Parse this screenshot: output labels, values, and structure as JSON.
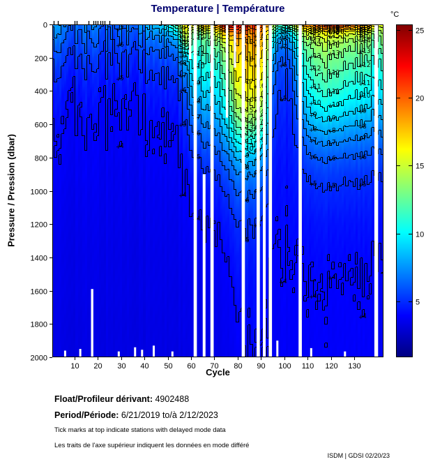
{
  "title": "Temperature | Température",
  "colors": {
    "title": "#00006e",
    "text": "#000000",
    "plot_border": "#000000",
    "background": "#ffffff"
  },
  "axes": {
    "x_label": "Cycle",
    "y_label": "Pressure / Pression (dbar)",
    "x_ticks": [
      10,
      20,
      30,
      40,
      50,
      60,
      70,
      80,
      90,
      100,
      110,
      120,
      130
    ],
    "y_ticks": [
      0,
      200,
      400,
      600,
      800,
      1000,
      1200,
      1400,
      1600,
      1800,
      2000
    ],
    "x_range": [
      0.5,
      142.5
    ],
    "y_range": [
      0,
      2000
    ]
  },
  "colorbar": {
    "label": "°C",
    "ticks": [
      25,
      20,
      15,
      10,
      5
    ],
    "vmin": 0.9,
    "vmax": 25.4
  },
  "chart_data": {
    "type": "heatmap",
    "x_name": "cycle",
    "y_name": "pressure_dbar",
    "value_name": "temperature_C",
    "pressures": [
      0,
      50,
      100,
      150,
      200,
      300,
      400,
      500,
      600,
      700,
      800,
      900,
      1000,
      1200,
      1400,
      1600,
      1800,
      2000
    ],
    "cycles": [
      1,
      6,
      12,
      18,
      24,
      30,
      36,
      42,
      48,
      52,
      55,
      58,
      61,
      64,
      67,
      71,
      75,
      79,
      83,
      87,
      91,
      95,
      99,
      103,
      107,
      111,
      116,
      121,
      126,
      131,
      136,
      139,
      142
    ],
    "temps_by_cycle": [
      [
        7.5,
        6.8,
        6.2,
        5.8,
        5.4,
        4.8,
        4.4,
        4.2,
        4.0,
        3.9,
        3.8,
        3.7,
        3.6,
        3.5,
        3.4,
        3.4,
        3.3,
        3.3
      ],
      [
        7.0,
        6.4,
        6.0,
        5.6,
        5.2,
        4.7,
        4.3,
        4.1,
        4.0,
        3.9,
        3.8,
        3.7,
        3.6,
        3.5,
        3.4,
        3.4,
        3.3,
        3.3
      ],
      [
        6.5,
        6.0,
        5.7,
        5.4,
        5.1,
        4.6,
        4.3,
        4.1,
        3.9,
        3.8,
        3.7,
        3.7,
        3.6,
        3.5,
        3.4,
        3.4,
        3.3,
        3.3
      ],
      [
        6.8,
        6.2,
        5.8,
        5.5,
        5.1,
        4.6,
        4.3,
        4.1,
        3.9,
        3.8,
        3.7,
        3.7,
        3.6,
        3.5,
        3.4,
        3.4,
        3.3,
        3.3
      ],
      [
        6.2,
        5.9,
        5.6,
        5.3,
        5.0,
        4.6,
        4.2,
        4.0,
        3.9,
        3.8,
        3.7,
        3.6,
        3.6,
        3.5,
        3.4,
        3.4,
        3.3,
        3.3
      ],
      [
        6.6,
        6.1,
        5.8,
        5.4,
        5.1,
        4.7,
        4.3,
        4.1,
        3.9,
        3.8,
        3.7,
        3.6,
        3.6,
        3.5,
        3.4,
        3.4,
        3.3,
        3.3
      ],
      [
        7.2,
        6.5,
        6.0,
        5.6,
        5.2,
        4.7,
        4.4,
        4.1,
        4.0,
        3.8,
        3.7,
        3.7,
        3.6,
        3.5,
        3.4,
        3.4,
        3.3,
        3.3
      ],
      [
        8.0,
        7.0,
        6.3,
        5.8,
        5.4,
        4.8,
        4.4,
        4.2,
        4.0,
        3.9,
        3.8,
        3.7,
        3.6,
        3.5,
        3.4,
        3.4,
        3.3,
        3.3
      ],
      [
        9.0,
        7.6,
        6.7,
        6.1,
        5.6,
        5.0,
        4.5,
        4.2,
        4.0,
        3.9,
        3.8,
        3.7,
        3.6,
        3.5,
        3.4,
        3.4,
        3.3,
        3.3
      ],
      [
        11.5,
        9.0,
        7.5,
        6.6,
        6.0,
        5.2,
        4.7,
        4.4,
        4.1,
        4.0,
        3.9,
        3.8,
        3.7,
        3.5,
        3.5,
        3.4,
        3.4,
        3.3
      ],
      [
        14.0,
        11.0,
        9.0,
        7.8,
        6.8,
        5.7,
        5.0,
        4.6,
        4.3,
        4.1,
        3.9,
        3.8,
        3.7,
        3.6,
        3.5,
        3.4,
        3.4,
        3.3
      ],
      [
        16.5,
        15.5,
        14.0,
        11.0,
        8.8,
        7.0,
        6.0,
        5.4,
        4.9,
        4.5,
        4.2,
        4.0,
        3.9,
        3.7,
        3.5,
        3.4,
        3.4,
        3.3
      ],
      [
        16.0,
        12.5,
        11.3,
        10.8,
        10.2,
        9.2,
        8.2,
        7.2,
        6.2,
        5.4,
        4.8,
        4.4,
        4.1,
        3.8,
        3.6,
        3.5,
        3.4,
        3.4
      ],
      [
        16.5,
        13.0,
        11.6,
        11.2,
        10.6,
        9.6,
        8.6,
        7.6,
        6.6,
        5.8,
        5.1,
        4.6,
        4.3,
        3.9,
        3.7,
        3.5,
        3.4,
        3.4
      ],
      [
        17.5,
        13.5,
        12.0,
        11.6,
        11.0,
        10.0,
        9.0,
        8.0,
        7.0,
        6.1,
        5.4,
        4.8,
        4.4,
        4.0,
        3.7,
        3.6,
        3.5,
        3.4
      ],
      [
        19.5,
        15.5,
        13.5,
        12.4,
        11.6,
        10.6,
        9.6,
        8.6,
        7.6,
        6.6,
        5.7,
        5.1,
        4.6,
        4.1,
        3.8,
        3.6,
        3.5,
        3.4
      ],
      [
        22.5,
        17.5,
        15.0,
        13.8,
        13.0,
        12.0,
        11.0,
        10.0,
        8.8,
        7.6,
        6.5,
        5.6,
        5.0,
        4.3,
        3.9,
        3.7,
        3.6,
        3.5
      ],
      [
        22.5,
        19.0,
        17.5,
        16.8,
        16.2,
        15.4,
        14.5,
        13.2,
        11.5,
        9.6,
        7.8,
        6.6,
        5.8,
        4.8,
        4.3,
        4.0,
        3.8,
        3.6
      ],
      [
        22.0,
        19.5,
        18.5,
        18.0,
        17.6,
        17.0,
        16.2,
        15.2,
        13.5,
        11.0,
        8.8,
        7.2,
        6.3,
        5.1,
        4.6,
        4.3,
        4.1,
        4.0
      ],
      [
        21.0,
        19.2,
        18.4,
        17.9,
        17.5,
        16.8,
        16.0,
        14.8,
        12.8,
        10.4,
        8.4,
        7.0,
        6.1,
        5.0,
        4.5,
        4.2,
        4.1,
        4.0
      ],
      [
        20.5,
        18.8,
        18.0,
        17.5,
        17.0,
        16.2,
        15.2,
        13.8,
        11.8,
        9.6,
        7.8,
        6.6,
        5.9,
        4.9,
        4.5,
        4.2,
        4.1,
        4.0
      ],
      [
        15.5,
        12.5,
        10.5,
        9.3,
        8.4,
        7.2,
        6.4,
        5.9,
        5.5,
        5.1,
        4.8,
        4.6,
        4.4,
        4.2,
        4.0,
        3.9,
        3.8,
        3.8
      ],
      [
        11.5,
        8.5,
        6.8,
        6.2,
        5.7,
        5.2,
        4.9,
        4.7,
        4.5,
        4.4,
        4.3,
        4.2,
        4.2,
        4.1,
        4.0,
        3.9,
        3.8,
        3.8
      ],
      [
        13.5,
        9.5,
        7.8,
        6.9,
        6.2,
        5.5,
        5.1,
        4.8,
        4.6,
        4.5,
        4.4,
        4.3,
        4.2,
        4.1,
        4.0,
        3.9,
        3.8,
        3.8
      ],
      [
        18.5,
        14.0,
        12.0,
        11.0,
        10.2,
        9.2,
        8.2,
        7.2,
        6.3,
        5.6,
        5.1,
        4.8,
        4.6,
        4.2,
        4.0,
        3.9,
        3.9,
        3.8
      ],
      [
        19.5,
        15.5,
        13.8,
        13.0,
        12.4,
        11.4,
        10.4,
        9.3,
        8.2,
        6.9,
        5.9,
        5.2,
        4.8,
        4.3,
        4.1,
        4.0,
        3.9,
        3.8
      ],
      [
        20.5,
        16.0,
        14.5,
        13.8,
        13.2,
        12.2,
        11.2,
        10.0,
        8.6,
        7.2,
        6.1,
        5.4,
        4.9,
        4.4,
        4.1,
        4.0,
        3.9,
        3.9
      ],
      [
        22.5,
        16.5,
        14.8,
        14.0,
        13.4,
        12.4,
        11.4,
        10.2,
        8.8,
        7.4,
        6.2,
        5.5,
        5.0,
        4.4,
        4.2,
        4.0,
        3.9,
        3.9
      ],
      [
        21.0,
        16.0,
        14.2,
        13.4,
        12.8,
        11.8,
        10.8,
        9.7,
        8.4,
        7.1,
        6.0,
        5.3,
        4.9,
        4.4,
        4.1,
        4.0,
        3.9,
        3.9
      ],
      [
        19.5,
        15.0,
        13.6,
        12.9,
        12.3,
        11.3,
        10.3,
        9.2,
        8.0,
        6.8,
        5.9,
        5.2,
        4.8,
        4.3,
        4.1,
        3.9,
        3.9,
        3.8
      ],
      [
        18.5,
        14.5,
        13.1,
        12.4,
        11.8,
        10.9,
        9.9,
        8.8,
        7.7,
        6.6,
        5.7,
        5.1,
        4.7,
        4.3,
        4.0,
        3.9,
        3.8,
        3.8
      ],
      [
        17.5,
        14.0,
        12.8,
        12.0,
        11.4,
        10.5,
        9.5,
        8.5,
        7.5,
        6.5,
        5.7,
        5.1,
        4.7,
        4.3,
        4.0,
        3.9,
        3.8,
        3.8
      ],
      [
        16.0,
        14.5,
        13.5,
        12.8,
        12.0,
        11.0,
        10.0,
        9.0,
        7.9,
        6.8,
        5.9,
        5.2,
        4.8,
        4.3,
        4.1,
        3.9,
        3.8,
        3.8
      ]
    ],
    "contour_levels_min": 2,
    "contour_levels_max": 24,
    "labeled_levels": [
      4,
      5,
      6,
      7,
      8,
      9,
      10,
      11,
      12,
      13,
      14,
      15,
      16,
      17,
      18,
      19
    ],
    "label_cycles": [
      30,
      57,
      63,
      84,
      89,
      100,
      113,
      121,
      134
    ]
  },
  "missing_data": [
    {
      "cycle": 61.8,
      "p0": 0,
      "p1": 2000,
      "w": 1.4
    },
    {
      "cycle": 69.0,
      "p0": 0,
      "p1": 2000,
      "w": 1.4
    },
    {
      "cycle": 82.4,
      "p0": 0,
      "p1": 2000,
      "w": 1.4
    },
    {
      "cycle": 88.8,
      "p0": 0,
      "p1": 2000,
      "w": 1.4
    },
    {
      "cycle": 91.4,
      "p0": 0,
      "p1": 2000,
      "w": 1.2
    },
    {
      "cycle": 94.0,
      "p0": 0,
      "p1": 2000,
      "w": 1.4
    },
    {
      "cycle": 106.8,
      "p0": 0,
      "p1": 2000,
      "w": 1.4
    },
    {
      "cycle": 139.4,
      "p0": 0,
      "p1": 2000,
      "w": 1.6
    },
    {
      "cycle": 59.6,
      "p0": 0,
      "p1": 210,
      "w": 1.0
    },
    {
      "cycle": 75.4,
      "p0": 0,
      "p1": 560,
      "w": 1.0
    },
    {
      "cycle": 78.8,
      "p0": 0,
      "p1": 260,
      "w": 1.0
    },
    {
      "cycle": 65.6,
      "p0": 900,
      "p1": 2000,
      "w": 1.2
    },
    {
      "cycle": 17.6,
      "p0": 1590,
      "p1": 2000,
      "w": 1.0
    },
    {
      "cycle": 6.0,
      "p0": 1960,
      "p1": 2000,
      "w": 0.9
    },
    {
      "cycle": 12.5,
      "p0": 1950,
      "p1": 2000,
      "w": 0.9
    },
    {
      "cycle": 29.0,
      "p0": 1965,
      "p1": 2000,
      "w": 0.9
    },
    {
      "cycle": 36.0,
      "p0": 1940,
      "p1": 2000,
      "w": 0.9
    },
    {
      "cycle": 39.0,
      "p0": 1955,
      "p1": 2000,
      "w": 0.9
    },
    {
      "cycle": 44.0,
      "p0": 1930,
      "p1": 2000,
      "w": 0.9
    },
    {
      "cycle": 52.0,
      "p0": 1965,
      "p1": 2000,
      "w": 0.9
    },
    {
      "cycle": 97.0,
      "p0": 1900,
      "p1": 2000,
      "w": 0.9
    },
    {
      "cycle": 111.5,
      "p0": 1945,
      "p1": 2000,
      "w": 0.9
    },
    {
      "cycle": 126.0,
      "p0": 1965,
      "p1": 2000,
      "w": 0.9
    }
  ],
  "delayed_mode_tick_cycles": [
    1,
    3,
    10,
    11,
    16,
    18,
    19,
    20,
    21,
    22,
    23,
    25,
    47,
    70,
    78,
    82,
    109
  ],
  "footer": {
    "float_label": "Float/Profileur dérivant:",
    "float_value": "4902488",
    "period_label": "Period/Période:",
    "period_value": "6/21/2019  to/à  2/12/2023",
    "note_en": "Tick marks at top indicate stations with delayed mode data",
    "note_fr": "Les traits de l'axe supérieur indiquent les données en mode différé",
    "credit": "ISDM | GDSI 02/20/23"
  }
}
